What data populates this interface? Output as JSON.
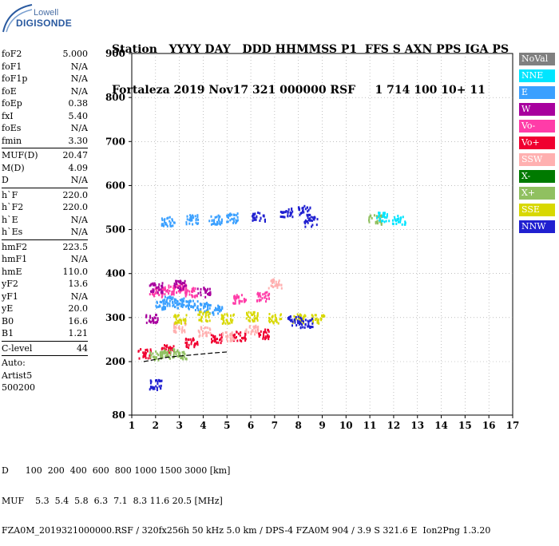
{
  "logo": {
    "line1": "Lowell",
    "line2": "DIGISONDE"
  },
  "header": {
    "line1": "Station   YYYY DAY   DDD HHMMSS P1  FFS S AXN PPS IGA PS",
    "line2": "Fortaleza 2019 Nov17 321 000000 RSF     1 714 100 10+ 11"
  },
  "params": {
    "group1": [
      {
        "k": "foF2",
        "v": "5.000"
      },
      {
        "k": "foF1",
        "v": "N/A"
      },
      {
        "k": "foF1p",
        "v": "N/A"
      },
      {
        "k": "foE",
        "v": "N/A"
      },
      {
        "k": "foEp",
        "v": "0.38"
      },
      {
        "k": "fxI",
        "v": "5.40"
      },
      {
        "k": "foEs",
        "v": "N/A"
      },
      {
        "k": "fmin",
        "v": "3.30"
      }
    ],
    "group2": [
      {
        "k": "MUF(D)",
        "v": "20.47"
      },
      {
        "k": "M(D)",
        "v": "4.09"
      },
      {
        "k": "D",
        "v": "N/A"
      }
    ],
    "group3": [
      {
        "k": "h`F",
        "v": "220.0"
      },
      {
        "k": "h`F2",
        "v": "220.0"
      },
      {
        "k": "h`E",
        "v": "N/A"
      },
      {
        "k": "h`Es",
        "v": "N/A"
      }
    ],
    "group4": [
      {
        "k": "hmF2",
        "v": "223.5"
      },
      {
        "k": "hmF1",
        "v": "N/A"
      },
      {
        "k": "hmE",
        "v": "110.0"
      },
      {
        "k": "yF2",
        "v": "13.6"
      },
      {
        "k": "yF1",
        "v": "N/A"
      },
      {
        "k": "yE",
        "v": "20.0"
      },
      {
        "k": "B0",
        "v": "16.6"
      },
      {
        "k": "B1",
        "v": "1.21"
      }
    ],
    "clevel": {
      "k": "C-level",
      "v": "44"
    },
    "auto": [
      "Auto:",
      "Artist5",
      "500200"
    ]
  },
  "bottom": {
    "d_line": "D      100  200  400  600  800 1000 1500 3000 [km]",
    "muf_line": "MUF    5.3  5.4  5.8  6.3  7.1  8.3 11.6 20.5 [MHz]",
    "file_line": "FZA0M_2019321000000.RSF / 320fx256h 50 kHz 5.0 km / DPS-4 FZA0M 904 / 3.9 S 321.6 E  Ion2Png 1.3.20"
  },
  "legend": [
    {
      "label": "NoVal",
      "color": "#808080",
      "text": "#ffffff"
    },
    {
      "label": "NNE",
      "color": "#00e5ff",
      "text": "#ffffff"
    },
    {
      "label": "E",
      "color": "#3aa0ff",
      "text": "#ffffff"
    },
    {
      "label": "W",
      "color": "#a8009e",
      "text": "#ffffff"
    },
    {
      "label": "Vo-",
      "color": "#ff3ca8",
      "text": "#ffffff"
    },
    {
      "label": "Vo+",
      "color": "#f00030",
      "text": "#ffffff"
    },
    {
      "label": "SSW",
      "color": "#ffb0b0",
      "text": "#ffffff"
    },
    {
      "label": "X-",
      "color": "#007a00",
      "text": "#ffffff"
    },
    {
      "label": "X+",
      "color": "#90c060",
      "text": "#ffffff"
    },
    {
      "label": "SSE",
      "color": "#d8d800",
      "text": "#ffffff"
    },
    {
      "label": "NNW",
      "color": "#2020d0",
      "text": "#ffffff"
    }
  ],
  "chart_data": {
    "type": "scatter",
    "title": "",
    "xlabel": "",
    "ylabel": "",
    "xlim": [
      1,
      17
    ],
    "ylim": [
      80,
      900
    ],
    "x_ticks": [
      1,
      2,
      3,
      4,
      5,
      6,
      7,
      8,
      9,
      10,
      11,
      12,
      13,
      14,
      15,
      16,
      17
    ],
    "y_ticks": [
      80,
      200,
      300,
      400,
      500,
      600,
      700,
      800,
      900
    ],
    "legend_placement": "right",
    "series": [
      {
        "name": "E",
        "values": [
          [
            2.2,
            330
          ],
          [
            2.6,
            340
          ],
          [
            3.0,
            335
          ],
          [
            3.5,
            330
          ],
          [
            4.0,
            325
          ],
          [
            4.5,
            320
          ],
          [
            2.5,
            520
          ],
          [
            3.5,
            525
          ],
          [
            4.5,
            525
          ],
          [
            5.2,
            528
          ]
        ]
      },
      {
        "name": "Vo-",
        "values": [
          [
            2.0,
            360
          ],
          [
            2.5,
            365
          ],
          [
            3.0,
            370
          ],
          [
            3.5,
            360
          ],
          [
            5.5,
            345
          ],
          [
            6.5,
            350
          ]
        ]
      },
      {
        "name": "Vo+",
        "values": [
          [
            1.5,
            220
          ],
          [
            2.5,
            230
          ],
          [
            3.5,
            245
          ],
          [
            4.5,
            255
          ],
          [
            5.5,
            260
          ],
          [
            6.5,
            265
          ]
        ]
      },
      {
        "name": "SSW",
        "values": [
          [
            3.0,
            280
          ],
          [
            4.0,
            270
          ],
          [
            5.0,
            260
          ],
          [
            6.0,
            275
          ],
          [
            7.0,
            380
          ]
        ]
      },
      {
        "name": "SSE",
        "values": [
          [
            3.0,
            300
          ],
          [
            4.0,
            305
          ],
          [
            5.0,
            300
          ],
          [
            6.0,
            305
          ],
          [
            7.0,
            300
          ],
          [
            8.0,
            300
          ],
          [
            8.8,
            300
          ]
        ]
      },
      {
        "name": "NNW",
        "values": [
          [
            6.3,
            530
          ],
          [
            7.5,
            540
          ],
          [
            8.2,
            545
          ],
          [
            8.5,
            520
          ],
          [
            2.0,
            150
          ],
          [
            7.8,
            295
          ],
          [
            8.3,
            290
          ]
        ]
      },
      {
        "name": "W",
        "values": [
          [
            2.0,
            370
          ],
          [
            3.0,
            375
          ],
          [
            4.0,
            360
          ],
          [
            1.8,
            300
          ]
        ]
      },
      {
        "name": "X+",
        "values": [
          [
            2.0,
            215
          ],
          [
            2.5,
            220
          ],
          [
            3.0,
            218
          ],
          [
            11.2,
            525
          ]
        ]
      },
      {
        "name": "NNE",
        "values": [
          [
            11.5,
            530
          ],
          [
            12.2,
            525
          ]
        ]
      }
    ],
    "trace": {
      "name": "fitted profile",
      "values": [
        [
          1.5,
          200
        ],
        [
          2.5,
          210
        ],
        [
          3.5,
          215
        ],
        [
          4.5,
          220
        ],
        [
          5.0,
          222
        ]
      ]
    }
  }
}
